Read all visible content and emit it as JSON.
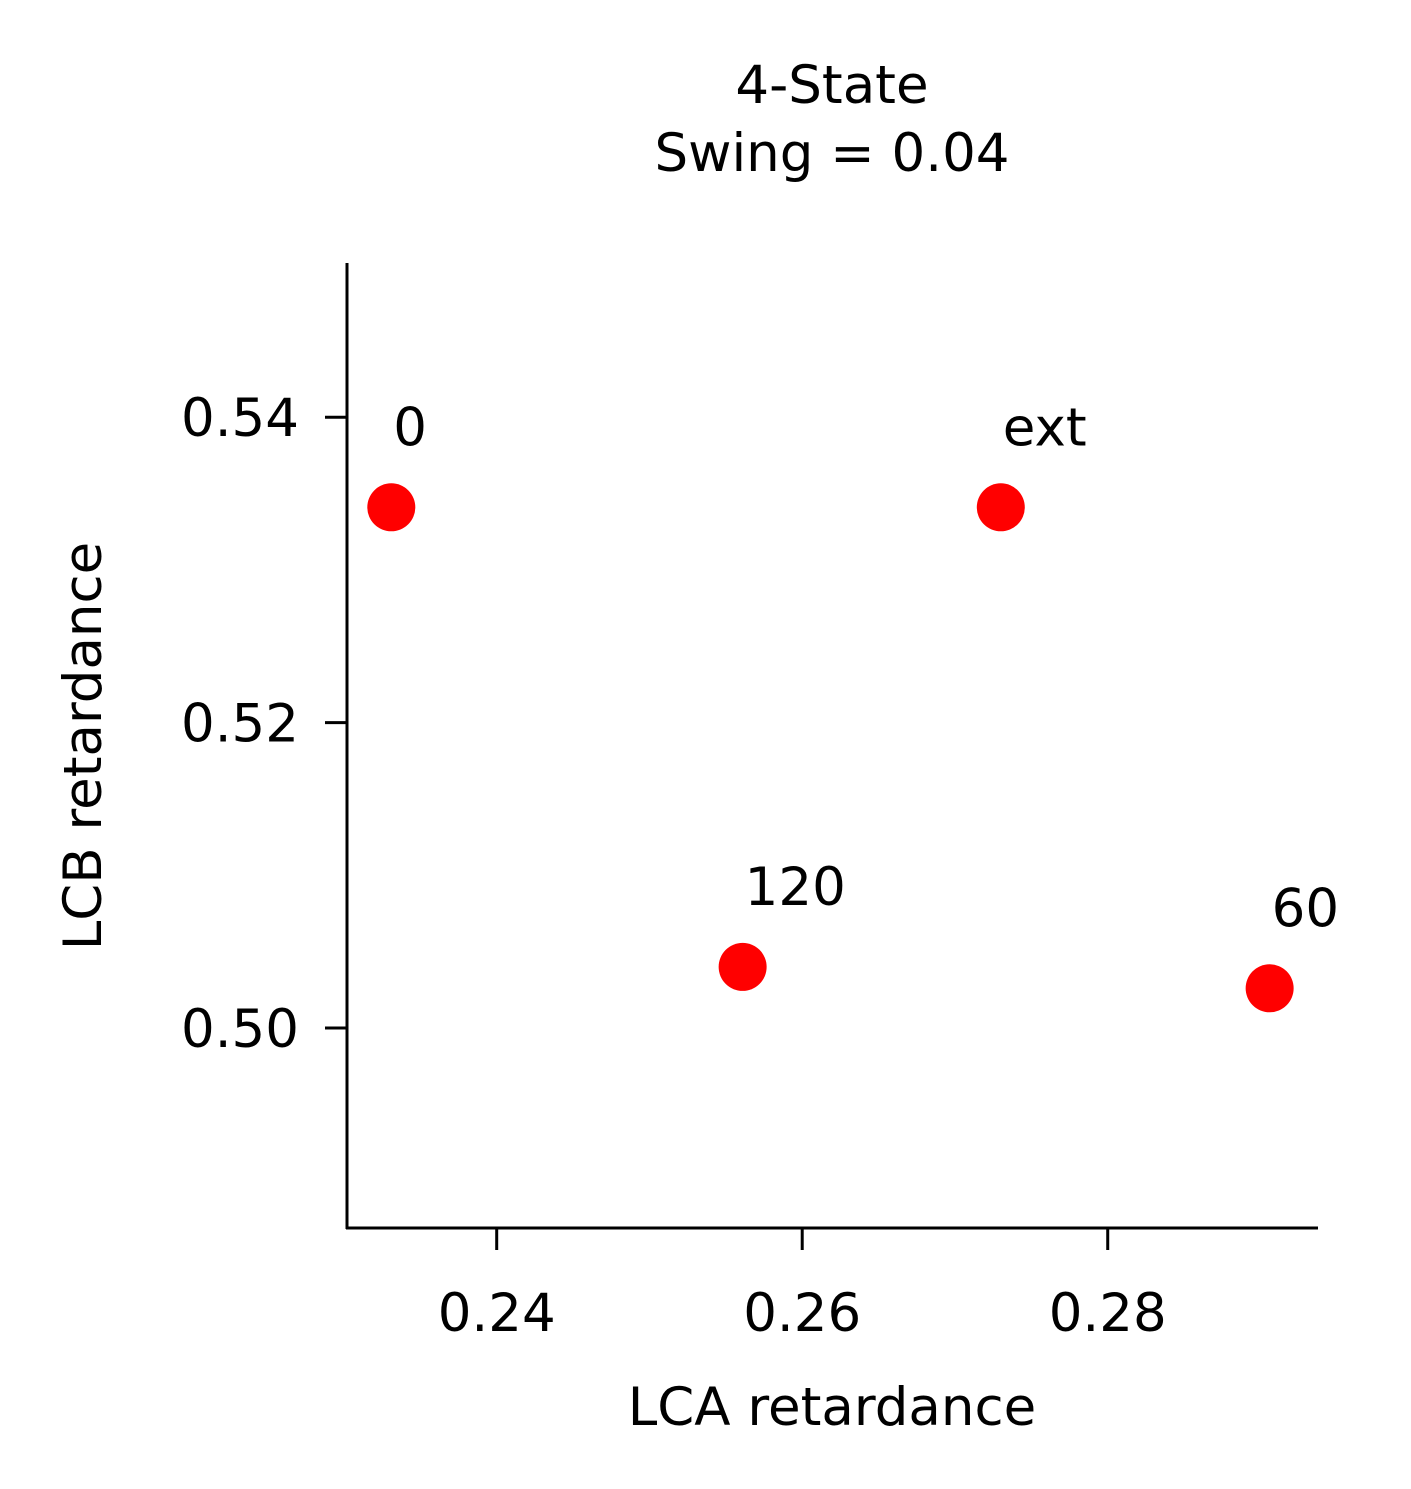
{
  "chart_data": {
    "type": "scatter",
    "title_line1": "4-State",
    "title_line2": "Swing = 0.04",
    "xlabel": "LCA retardance",
    "ylabel": "LCB retardance",
    "xlim": [
      0.2302,
      0.2937
    ],
    "ylim": [
      0.4869,
      0.5501
    ],
    "xticks": [
      0.24,
      0.26,
      0.28
    ],
    "xtick_labels": [
      "0.24",
      "0.26",
      "0.28"
    ],
    "yticks": [
      0.5,
      0.52,
      0.54
    ],
    "ytick_labels": [
      "0.50",
      "0.52",
      "0.54"
    ],
    "grid": false,
    "marker_color": "#ff0000",
    "points": [
      {
        "label": "0",
        "x": 0.2331,
        "y": 0.5341
      },
      {
        "label": "ext",
        "x": 0.273,
        "y": 0.5341
      },
      {
        "label": "120",
        "x": 0.2561,
        "y": 0.504
      },
      {
        "label": "60",
        "x": 0.2906,
        "y": 0.5026
      }
    ]
  }
}
